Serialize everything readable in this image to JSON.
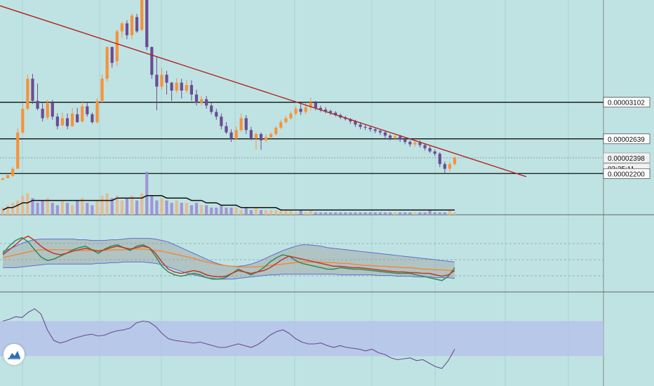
{
  "colors": {
    "background": "#bfe3e3",
    "up": "#f7923a",
    "down": "#6a4c93",
    "trendline": "#b22222",
    "hline": "#111111",
    "ma_volume": "#111111",
    "bb_fill": "#9e9e9e",
    "bb_band": "#5a6fd6",
    "rsi_line": "#6a4c93",
    "rsi_band": "#b7c1ea"
  },
  "price_tags": [
    {
      "label": "0.00003102",
      "kind": "level",
      "value": 3.102e-05
    },
    {
      "label": "0.00002639",
      "kind": "level",
      "value": 2.639e-05
    },
    {
      "label": "0.00002398",
      "kind": "current",
      "value": 2.398e-05
    },
    {
      "label": "03:25:11",
      "kind": "countdown"
    },
    {
      "label": "0.00002200",
      "kind": "level",
      "value": 2.2e-05
    }
  ],
  "chart_data": [
    {
      "type": "candlestick",
      "panel": "price",
      "horizontal_levels": [
        3.102e-05,
        2.639e-05,
        2.2e-05
      ],
      "current_price": 2.398e-05,
      "ylim": [
        1.998e-05,
        4.396e-05
      ],
      "candles": [
        [
          2.12e-05,
          2.14e-05,
          2.12e-05,
          2.143e-05
        ],
        [
          2.14e-05,
          2.18e-05,
          2.16e-05,
          2.184e-05
        ],
        [
          2.17e-05,
          2.26e-05,
          2.16e-05,
          2.285e-05
        ],
        [
          2.26e-05,
          2.72e-05,
          2.26e-05,
          2.776e-05
        ],
        [
          2.72e-05,
          3.02e-05,
          2.7e-05,
          3.091e-05
        ],
        [
          3.02e-05,
          3.4e-05,
          3e-05,
          3.451e-05
        ],
        [
          3.4e-05,
          3.12e-05,
          3.08e-05,
          3.461e-05
        ],
        [
          3.12e-05,
          3.02e-05,
          3e-05,
          3.339e-05
        ],
        [
          3.02e-05,
          2.9e-05,
          2.86e-05,
          3.091e-05
        ],
        [
          2.91e-05,
          3.1e-05,
          2.88e-05,
          3.133e-05
        ],
        [
          3.1e-05,
          2.92e-05,
          2.88e-05,
          3.133e-05
        ],
        [
          2.92e-05,
          2.8e-05,
          2.76e-05,
          2.961e-05
        ],
        [
          2.81e-05,
          2.9e-05,
          2.8e-05,
          2.971e-05
        ],
        [
          2.9e-05,
          2.8e-05,
          2.76e-05,
          2.961e-05
        ],
        [
          2.8e-05,
          2.96e-05,
          2.79e-05,
          3.03e-05
        ],
        [
          2.95e-05,
          2.85e-05,
          2.84e-05,
          3.03e-05
        ],
        [
          2.86e-05,
          3.05e-05,
          2.84e-05,
          3.123e-05
        ],
        [
          3.05e-05,
          2.95e-05,
          2.92e-05,
          3.091e-05
        ],
        [
          2.95e-05,
          2.85e-05,
          2.83e-05,
          2.971e-05
        ],
        [
          2.85e-05,
          3.12e-05,
          2.83e-05,
          3.153e-05
        ],
        [
          3.12e-05,
          3.4e-05,
          3.1e-05,
          3.451e-05
        ],
        [
          3.4e-05,
          3.8e-05,
          3.36e-05,
          3.81e-05
        ],
        [
          3.8e-05,
          3.6e-05,
          3.54e-05,
          3.81e-05
        ],
        [
          3.62e-05,
          4e-05,
          3.56e-05,
          4.02e-05
        ],
        [
          4e-05,
          4.1e-05,
          3.92e-05,
          4.12e-05
        ],
        [
          4.1e-05,
          3.95e-05,
          3.9e-05,
          4.14e-05
        ],
        [
          3.95e-05,
          4.2e-05,
          3.9e-05,
          4.23e-05
        ],
        [
          4.18e-05,
          4e-05,
          3.98e-05,
          4.22e-05
        ],
        [
          4.02e-05,
          4.4e-05,
          4e-05,
          4.39e-05
        ],
        [
          4.4e-05,
          3.8e-05,
          3.76e-05,
          4.39e-05
        ],
        [
          3.8e-05,
          3.45e-05,
          3.4e-05,
          3.81e-05
        ],
        [
          3.45e-05,
          3.3e-05,
          3e-05,
          3.68e-05
        ],
        [
          3.3e-05,
          3.45e-05,
          3.26e-05,
          3.54e-05
        ],
        [
          3.45e-05,
          3.35e-05,
          3.2e-05,
          3.5e-05
        ],
        [
          3.35e-05,
          3.25e-05,
          3.12e-05,
          3.36e-05
        ],
        [
          3.25e-05,
          3.35e-05,
          3.22e-05,
          3.41e-05
        ],
        [
          3.35e-05,
          3.25e-05,
          3.15e-05,
          3.4e-05
        ],
        [
          3.25e-05,
          3.32e-05,
          3.22e-05,
          3.38e-05
        ],
        [
          3.32e-05,
          3.2e-05,
          3.12e-05,
          3.38e-05
        ],
        [
          3.2e-05,
          3.1e-05,
          3.06e-05,
          3.26e-05
        ],
        [
          3.1e-05,
          3.14e-05,
          3.06e-05,
          3.18e-05
        ],
        [
          3.14e-05,
          3.06e-05,
          3.02e-05,
          3.18e-05
        ],
        [
          3.06e-05,
          2.98e-05,
          2.95e-05,
          3.1e-05
        ],
        [
          2.98e-05,
          2.92e-05,
          2.88e-05,
          3.02e-05
        ],
        [
          2.92e-05,
          2.8e-05,
          2.76e-05,
          2.96e-05
        ],
        [
          2.8e-05,
          2.72e-05,
          2.7e-05,
          2.85e-05
        ],
        [
          2.72e-05,
          2.64e-05,
          2.6e-05,
          2.76e-05
        ],
        [
          2.64e-05,
          2.75e-05,
          2.62e-05,
          2.8e-05
        ],
        [
          2.75e-05,
          2.9e-05,
          2.73e-05,
          2.96e-05
        ],
        [
          2.9e-05,
          2.75e-05,
          2.7e-05,
          2.94e-05
        ],
        [
          2.75e-05,
          2.64e-05,
          2.62e-05,
          2.79e-05
        ],
        [
          2.65e-05,
          2.7e-05,
          2.5e-05,
          2.72e-05
        ],
        [
          2.7e-05,
          2.62e-05,
          2.5e-05,
          2.72e-05
        ],
        [
          2.62e-05,
          2.66e-05,
          2.6e-05,
          2.7e-05
        ],
        [
          2.66e-05,
          2.7e-05,
          2.64e-05,
          2.72e-05
        ],
        [
          2.7e-05,
          2.78e-05,
          2.68e-05,
          2.8e-05
        ],
        [
          2.78e-05,
          2.85e-05,
          2.76e-05,
          2.88e-05
        ],
        [
          2.85e-05,
          2.9e-05,
          2.83e-05,
          2.93e-05
        ],
        [
          2.9e-05,
          2.96e-05,
          2.88e-05,
          2.99e-05
        ],
        [
          2.96e-05,
          3.02e-05,
          2.94e-05,
          3.05e-05
        ],
        [
          3.02e-05,
          2.98e-05,
          2.94e-05,
          3.08e-05
        ],
        [
          2.98e-05,
          3.04e-05,
          2.95e-05,
          3.09e-05
        ],
        [
          3.04e-05,
          3.1e-05,
          3e-05,
          3.16e-05
        ],
        [
          3.1e-05,
          3.03e-05,
          3e-05,
          3.12e-05
        ],
        [
          3.03e-05,
          3.01e-05,
          2.98e-05,
          3.06e-05
        ],
        [
          3.01e-05,
          2.99e-05,
          2.96e-05,
          3.04e-05
        ],
        [
          2.99e-05,
          2.97e-05,
          2.94e-05,
          3.01e-05
        ],
        [
          2.97e-05,
          2.94e-05,
          2.92e-05,
          2.99e-05
        ],
        [
          2.94e-05,
          2.91e-05,
          2.89e-05,
          2.96e-05
        ],
        [
          2.91e-05,
          2.89e-05,
          2.87e-05,
          2.93e-05
        ],
        [
          2.89e-05,
          2.86e-05,
          2.83e-05,
          2.9e-05
        ],
        [
          2.86e-05,
          2.82e-05,
          2.79e-05,
          2.88e-05
        ],
        [
          2.82e-05,
          2.79e-05,
          2.76e-05,
          2.85e-05
        ],
        [
          2.79e-05,
          2.78e-05,
          2.75e-05,
          2.82e-05
        ],
        [
          2.78e-05,
          2.76e-05,
          2.73e-05,
          2.8e-05
        ],
        [
          2.76e-05,
          2.74e-05,
          2.71e-05,
          2.78e-05
        ],
        [
          2.74e-05,
          2.72e-05,
          2.69e-05,
          2.76e-05
        ],
        [
          2.72e-05,
          2.68e-05,
          2.65e-05,
          2.74e-05
        ],
        [
          2.68e-05,
          2.65e-05,
          2.62e-05,
          2.7e-05
        ],
        [
          2.65e-05,
          2.67e-05,
          2.62e-05,
          2.69e-05
        ],
        [
          2.67e-05,
          2.63e-05,
          2.6e-05,
          2.69e-05
        ],
        [
          2.63e-05,
          2.6e-05,
          2.57e-05,
          2.65e-05
        ],
        [
          2.6e-05,
          2.57e-05,
          2.54e-05,
          2.62e-05
        ],
        [
          2.57e-05,
          2.59e-05,
          2.54e-05,
          2.61e-05
        ],
        [
          2.59e-05,
          2.56e-05,
          2.53e-05,
          2.62e-05
        ],
        [
          2.56e-05,
          2.52e-05,
          2.49e-05,
          2.58e-05
        ],
        [
          2.52e-05,
          2.48e-05,
          2.46e-05,
          2.55e-05
        ],
        [
          2.48e-05,
          2.45e-05,
          2.42e-05,
          2.5e-05
        ],
        [
          2.45e-05,
          2.32e-05,
          2.28e-05,
          2.47e-05
        ],
        [
          2.32e-05,
          2.26e-05,
          2.2e-05,
          2.35e-05
        ],
        [
          2.26e-05,
          2.32e-05,
          2.22e-05,
          2.35e-05
        ],
        [
          2.32e-05,
          2.4e-05,
          2.3e-05,
          2.42e-05
        ]
      ]
    },
    {
      "type": "bar",
      "panel": "volume",
      "values": [
        3,
        4,
        5,
        6,
        8,
        9,
        7,
        5,
        6,
        7,
        5,
        4,
        6,
        5,
        4,
        6,
        7,
        5,
        4,
        6,
        8,
        9,
        7,
        8,
        6,
        7,
        8,
        6,
        9,
        18,
        8,
        6,
        7,
        6,
        5,
        6,
        5,
        5,
        4,
        5,
        4,
        4,
        3,
        3,
        4,
        3,
        3,
        3,
        2,
        3,
        2,
        3,
        2,
        2,
        2,
        2,
        2,
        2,
        2,
        1,
        2,
        1,
        2,
        1,
        1,
        1,
        1,
        1,
        1,
        1,
        1,
        1,
        1,
        1,
        1,
        1,
        1,
        1,
        1,
        1,
        1,
        1,
        1,
        1,
        1,
        1,
        2,
        1,
        1,
        1,
        2,
        1
      ],
      "ma": [
        2,
        3,
        3,
        4,
        5,
        5,
        6,
        6,
        6,
        6,
        6,
        6,
        6,
        6,
        6,
        6,
        6,
        6,
        6,
        6,
        6,
        6,
        6,
        7,
        7,
        7,
        7,
        7,
        7,
        8,
        8,
        8,
        8,
        7,
        7,
        7,
        7,
        7,
        6,
        6,
        6,
        5,
        5,
        5,
        4,
        4,
        4,
        4,
        3,
        3,
        3,
        3,
        3,
        3,
        3,
        3,
        2,
        2,
        2,
        2,
        2,
        2,
        2,
        2,
        2,
        2,
        2,
        2,
        2,
        2,
        2,
        2,
        2,
        2,
        2,
        2,
        2,
        2,
        2,
        2,
        2,
        2,
        2,
        2,
        2,
        2,
        2,
        2,
        2,
        2,
        2,
        2
      ],
      "ylim": [
        0,
        20
      ]
    },
    {
      "type": "line",
      "panel": "bollinger",
      "series": [
        {
          "key": "upper",
          "values": [
            53,
            56,
            60,
            64,
            67,
            69,
            70,
            70,
            70,
            70,
            70,
            70,
            69,
            69,
            68,
            68,
            68,
            69,
            69,
            70,
            71,
            71,
            71,
            71,
            70,
            68,
            66,
            62,
            58,
            54,
            50,
            46,
            42,
            38,
            35,
            33,
            32,
            32,
            33,
            35,
            38,
            42,
            46,
            50,
            54,
            57,
            60,
            62,
            62,
            61,
            60,
            58,
            57,
            56,
            55,
            54,
            53,
            52,
            51,
            50,
            49,
            48,
            47,
            46,
            45,
            44,
            43,
            42,
            41,
            40,
            39,
            38
          ]
        },
        {
          "key": "lower",
          "values": [
            30,
            30,
            30,
            31,
            32,
            33,
            34,
            35,
            35,
            35,
            35,
            35,
            35,
            35,
            35,
            36,
            36,
            37,
            37,
            38,
            38,
            38,
            38,
            37,
            36,
            34,
            31,
            28,
            25,
            22,
            20,
            18,
            16,
            15,
            14,
            14,
            14,
            15,
            16,
            17,
            18,
            19,
            20,
            20,
            21,
            21,
            21,
            21,
            21,
            21,
            21,
            21,
            21,
            20,
            20,
            20,
            20,
            20,
            20,
            19,
            19,
            19,
            18,
            18,
            18,
            17,
            17,
            17,
            16,
            16,
            16,
            15
          ]
        },
        {
          "key": "basis",
          "values": [
            44,
            46,
            48,
            50,
            52,
            54,
            55,
            55,
            55,
            55,
            55,
            55,
            54,
            54,
            54,
            54,
            54,
            55,
            55,
            55,
            56,
            56,
            56,
            55,
            54,
            53,
            51,
            49,
            47,
            45,
            43,
            40,
            38,
            36,
            34,
            33,
            32,
            31,
            31,
            31,
            31,
            32,
            33,
            34,
            35,
            36,
            37,
            38,
            38,
            38,
            38,
            37,
            37,
            36,
            36,
            35,
            34,
            33,
            33,
            32,
            32,
            31,
            31,
            30,
            30,
            29,
            28,
            28,
            27,
            27,
            26,
            26
          ]
        },
        {
          "key": "fast",
          "values": [
            48,
            55,
            62,
            70,
            74,
            68,
            60,
            54,
            50,
            48,
            50,
            53,
            55,
            57,
            55,
            53,
            55,
            58,
            60,
            58,
            56,
            58,
            60,
            58,
            50,
            38,
            28,
            24,
            22,
            24,
            26,
            24,
            20,
            18,
            17,
            18,
            22,
            26,
            24,
            22,
            24,
            26,
            30,
            36,
            42,
            46,
            44,
            42,
            40,
            38,
            36,
            34,
            32,
            32,
            31,
            30,
            30,
            29,
            28,
            27,
            26,
            25,
            24,
            24,
            23,
            23,
            22,
            22,
            20,
            18,
            20,
            26
          ]
        },
        {
          "key": "slow",
          "values": [
            50,
            60,
            68,
            72,
            66,
            55,
            45,
            40,
            42,
            46,
            50,
            55,
            58,
            60,
            55,
            50,
            56,
            60,
            62,
            58,
            54,
            60,
            62,
            58,
            46,
            32,
            24,
            20,
            18,
            20,
            22,
            20,
            16,
            14,
            14,
            16,
            22,
            28,
            24,
            20,
            24,
            30,
            38,
            44,
            48,
            46,
            40,
            36,
            34,
            32,
            30,
            28,
            28,
            30,
            29,
            28,
            28,
            27,
            26,
            25,
            24,
            23,
            22,
            22,
            22,
            20,
            18,
            16,
            14,
            12,
            18,
            30
          ]
        }
      ],
      "ylim": [
        0,
        100
      ]
    },
    {
      "type": "line",
      "panel": "rsi",
      "band": [
        30,
        70
      ],
      "values": [
        70,
        72,
        75,
        74,
        80,
        84,
        78,
        60,
        48,
        45,
        47,
        50,
        52,
        54,
        55,
        53,
        54,
        57,
        59,
        60,
        62,
        68,
        70,
        69,
        64,
        56,
        50,
        48,
        47,
        46,
        45,
        46,
        44,
        42,
        40,
        40,
        42,
        44,
        42,
        40,
        43,
        48,
        54,
        58,
        60,
        56,
        50,
        46,
        44,
        44,
        45,
        42,
        40,
        42,
        40,
        39,
        38,
        36,
        38,
        34,
        32,
        28,
        26,
        27,
        28,
        25,
        26,
        22,
        18,
        16,
        25,
        38
      ],
      "ylim": [
        0,
        100
      ]
    }
  ]
}
